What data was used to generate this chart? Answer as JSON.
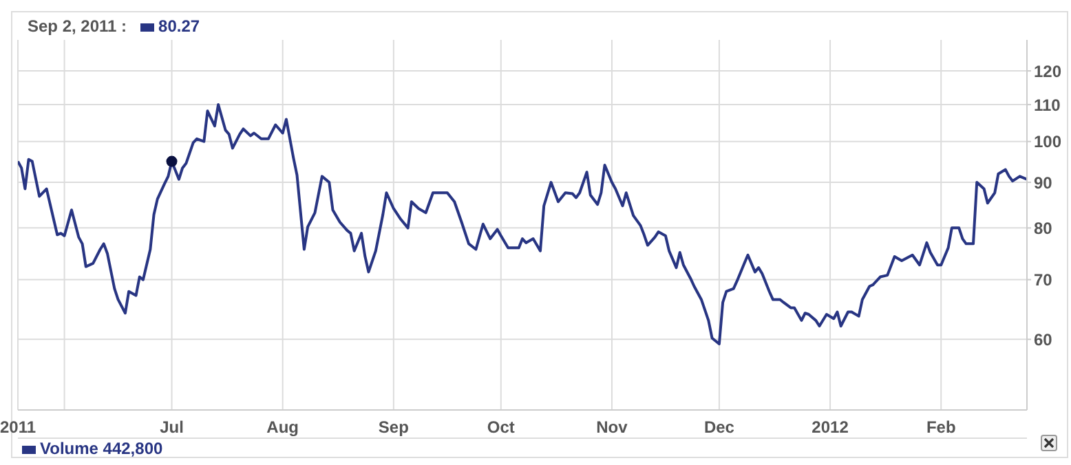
{
  "chart_data": {
    "type": "line",
    "log": true,
    "grid": true,
    "marker": "none",
    "line_style": "solid",
    "xlim": [
      "2011-05-19",
      "2012-02-25"
    ],
    "xticks": [
      {
        "value": "2011-05-19",
        "label": "2011"
      },
      {
        "value": "2011-06-01",
        "label": null
      },
      {
        "value": "2011-07-01",
        "label": "Jul"
      },
      {
        "value": "2011-08-01",
        "label": "Aug"
      },
      {
        "value": "2011-09-01",
        "label": "Sep"
      },
      {
        "value": "2011-10-01",
        "label": "Oct"
      },
      {
        "value": "2011-11-01",
        "label": "Nov"
      },
      {
        "value": "2011-12-01",
        "label": "Dec"
      },
      {
        "value": "2012-01-01",
        "label": "2012"
      },
      {
        "value": "2012-02-01",
        "label": "Feb"
      }
    ],
    "ylim": [
      50,
      130
    ],
    "yticks": [
      60,
      70,
      80,
      90,
      100,
      110,
      120
    ],
    "annotations": [
      "Sep 2, 2011 :",
      "80.27",
      "Volume 442,800"
    ],
    "series": [
      {
        "color": "#283583",
        "x": [
          "2011-05-19",
          "2011-05-20",
          "2011-05-21",
          "2011-05-22",
          "2011-05-23",
          "2011-05-25",
          "2011-05-27",
          "2011-05-30",
          "2011-05-31",
          "2011-06-01",
          "2011-06-03",
          "2011-06-05",
          "2011-06-06",
          "2011-06-07",
          "2011-06-09",
          "2011-06-11",
          "2011-06-12",
          "2011-06-13",
          "2011-06-15",
          "2011-06-16",
          "2011-06-18",
          "2011-06-19",
          "2011-06-21",
          "2011-06-22",
          "2011-06-23",
          "2011-06-25",
          "2011-06-26",
          "2011-06-27",
          "2011-06-29",
          "2011-06-30",
          "2011-07-01",
          "2011-07-03",
          "2011-07-04",
          "2011-07-05",
          "2011-07-07",
          "2011-07-08",
          "2011-07-10",
          "2011-07-11",
          "2011-07-13",
          "2011-07-14",
          "2011-07-16",
          "2011-07-17",
          "2011-07-18",
          "2011-07-20",
          "2011-07-21",
          "2011-07-23",
          "2011-07-24",
          "2011-07-26",
          "2011-07-28",
          "2011-07-30",
          "2011-08-01",
          "2011-08-02",
          "2011-08-04",
          "2011-08-05",
          "2011-08-07",
          "2011-08-08",
          "2011-08-10",
          "2011-08-12",
          "2011-08-14",
          "2011-08-15",
          "2011-08-17",
          "2011-08-19",
          "2011-08-20",
          "2011-08-21",
          "2011-08-23",
          "2011-08-24",
          "2011-08-25",
          "2011-08-27",
          "2011-08-29",
          "2011-08-30",
          "2011-09-01",
          "2011-09-03",
          "2011-09-05",
          "2011-09-06",
          "2011-09-08",
          "2011-09-10",
          "2011-09-12",
          "2011-09-16",
          "2011-09-18",
          "2011-09-20",
          "2011-09-22",
          "2011-09-24",
          "2011-09-26",
          "2011-09-28",
          "2011-09-30",
          "2011-10-01",
          "2011-10-03",
          "2011-10-06",
          "2011-10-07",
          "2011-10-08",
          "2011-10-10",
          "2011-10-12",
          "2011-10-13",
          "2011-10-15",
          "2011-10-17",
          "2011-10-19",
          "2011-10-21",
          "2011-10-22",
          "2011-10-23",
          "2011-10-25",
          "2011-10-26",
          "2011-10-28",
          "2011-10-29",
          "2011-10-30",
          "2011-11-01",
          "2011-11-02",
          "2011-11-04",
          "2011-11-05",
          "2011-11-07",
          "2011-11-09",
          "2011-11-10",
          "2011-11-11",
          "2011-11-13",
          "2011-11-14",
          "2011-11-16",
          "2011-11-17",
          "2011-11-19",
          "2011-11-20",
          "2011-11-21",
          "2011-11-23",
          "2011-11-24",
          "2011-11-26",
          "2011-11-28",
          "2011-11-29",
          "2011-12-01",
          "2011-12-02",
          "2011-12-03",
          "2011-12-05",
          "2011-12-06",
          "2011-12-08",
          "2011-12-09",
          "2011-12-11",
          "2011-12-12",
          "2011-12-13",
          "2011-12-15",
          "2011-12-16",
          "2011-12-18",
          "2011-12-19",
          "2011-12-21",
          "2011-12-22",
          "2011-12-24",
          "2011-12-25",
          "2011-12-26",
          "2011-12-28",
          "2011-12-29",
          "2011-12-31",
          "2012-01-02",
          "2012-01-03",
          "2012-01-04",
          "2012-01-06",
          "2012-01-07",
          "2012-01-09",
          "2012-01-10",
          "2012-01-12",
          "2012-01-13",
          "2012-01-15",
          "2012-01-17",
          "2012-01-19",
          "2012-01-21",
          "2012-01-24",
          "2012-01-26",
          "2012-01-28",
          "2012-01-29",
          "2012-01-31",
          "2012-02-01",
          "2012-02-03",
          "2012-02-04",
          "2012-02-06",
          "2012-02-07",
          "2012-02-08",
          "2012-02-10",
          "2012-02-11",
          "2012-02-13",
          "2012-02-14",
          "2012-02-16",
          "2012-02-17",
          "2012-02-19",
          "2012-02-20",
          "2012-02-21",
          "2012-02-23",
          "2012-02-25"
        ],
        "values": [
          95,
          93.4,
          88.5,
          95.5,
          95,
          86.8,
          88.5,
          78.6,
          78.9,
          78.4,
          83.8,
          78.1,
          76.8,
          72.4,
          73,
          75.7,
          76.8,
          74.9,
          68.4,
          66.5,
          64.2,
          67.9,
          67.2,
          70.5,
          70,
          75.7,
          82.8,
          86.2,
          89.7,
          91.4,
          95,
          90.7,
          93.4,
          94.5,
          99.7,
          100.7,
          100,
          108.2,
          104.1,
          110,
          103,
          101.9,
          98.3,
          101.9,
          103.3,
          101.5,
          102.2,
          100.7,
          100.7,
          104.4,
          102.2,
          105.9,
          95.9,
          91.7,
          75.7,
          80.2,
          83.2,
          91.4,
          90,
          83.8,
          81.2,
          79.5,
          78.9,
          75.4,
          78.9,
          74.4,
          71.4,
          75.4,
          82.8,
          87.6,
          84.1,
          81.8,
          80,
          85.6,
          84.1,
          83.2,
          87.6,
          87.6,
          85.6,
          81.2,
          76.8,
          75.7,
          80.8,
          77.8,
          79.7,
          78.4,
          76,
          76,
          77.8,
          77,
          77.8,
          75.4,
          84.7,
          90,
          85.6,
          87.6,
          87.4,
          86.5,
          87.6,
          92.4,
          87.1,
          85,
          87.6,
          94.1,
          90,
          88.5,
          84.7,
          87.6,
          82.6,
          80.5,
          78.6,
          76.5,
          78.1,
          79.2,
          78.4,
          75.4,
          72.2,
          75.1,
          72.7,
          70.2,
          68.8,
          66.5,
          63,
          60.2,
          59.3,
          66,
          67.9,
          68.4,
          69.8,
          73,
          74.6,
          71.4,
          72.2,
          71.1,
          67.9,
          66.5,
          66.5,
          66,
          65.1,
          65.1,
          63,
          64.2,
          64,
          63,
          62.1,
          64,
          63.3,
          64.4,
          62.1,
          64.4,
          64.4,
          63.7,
          66.5,
          68.8,
          69.1,
          70.5,
          70.8,
          74.3,
          73.5,
          74.6,
          72.7,
          77,
          75.1,
          72.7,
          72.7,
          76,
          80,
          80,
          77.8,
          76.8,
          76.8,
          90,
          88.5,
          85.3,
          87.6,
          92,
          93,
          91.4,
          90.3,
          91.4,
          90.7
        ]
      },
      {
        "type": "scatter",
        "marker": "circle",
        "color": "#0a1040",
        "x": [
          "2011-07-01"
        ],
        "values": [
          95
        ]
      }
    ]
  }
}
